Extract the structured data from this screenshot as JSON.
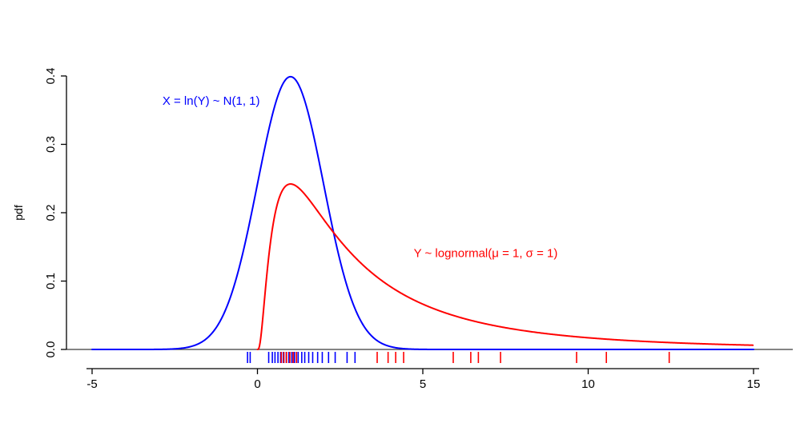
{
  "chart_data": {
    "type": "line",
    "title": "",
    "xlabel": "",
    "ylabel": "pdf",
    "xlim": [
      -5,
      15
    ],
    "ylim": [
      0,
      0.4
    ],
    "x_tick_labels": [
      "-5",
      "0",
      "5",
      "10",
      "15"
    ],
    "x_tick_values": [
      -5,
      0,
      5,
      10,
      15
    ],
    "y_tick_labels": [
      "0.0",
      "0.1",
      "0.2",
      "0.3",
      "0.4"
    ],
    "y_tick_values": [
      0,
      0.1,
      0.2,
      0.3,
      0.4
    ],
    "grid": false,
    "zero_line": true,
    "legend_position": "none",
    "axis_color": "#000000",
    "zero_line_color": "#3b3b3b",
    "series": [
      {
        "name": "normal-pdf",
        "label": "X = ln(Y) ~ N(1, 1)",
        "distribution": "normal",
        "mu": 1,
        "sigma": 1,
        "color": "#0000ff",
        "label_x": -1.4,
        "label_y": 0.358,
        "x_start": -5,
        "x_end": 15,
        "peak_x": 1,
        "peak_y": 0.399
      },
      {
        "name": "lognormal-pdf",
        "label": "Y ~ lognormal(μ = 1, σ = 1)",
        "distribution": "lognormal",
        "mu": 1,
        "sigma": 1,
        "color": "#ff0000",
        "label_x": 6.9,
        "label_y": 0.135,
        "x_start": 0.001,
        "x_end": 15,
        "peak_x": 1,
        "peak_y": 0.242
      }
    ],
    "rug": [
      {
        "name": "normal-samples",
        "color": "#0000ff",
        "values": [
          -0.3,
          -0.22,
          0.34,
          0.45,
          0.53,
          0.62,
          0.7,
          0.78,
          0.87,
          0.95,
          1.04,
          1.12,
          1.23,
          1.34,
          1.43,
          1.55,
          1.67,
          1.82,
          1.96,
          2.15,
          2.35,
          2.71,
          2.95
        ]
      },
      {
        "name": "lognormal-samples",
        "color": "#ff0000",
        "values": [
          0.72,
          0.8,
          0.88,
          0.98,
          1.08,
          1.18,
          3.62,
          3.95,
          4.18,
          4.42,
          5.92,
          6.45,
          6.68,
          7.35,
          9.65,
          10.55,
          12.45
        ]
      }
    ]
  }
}
